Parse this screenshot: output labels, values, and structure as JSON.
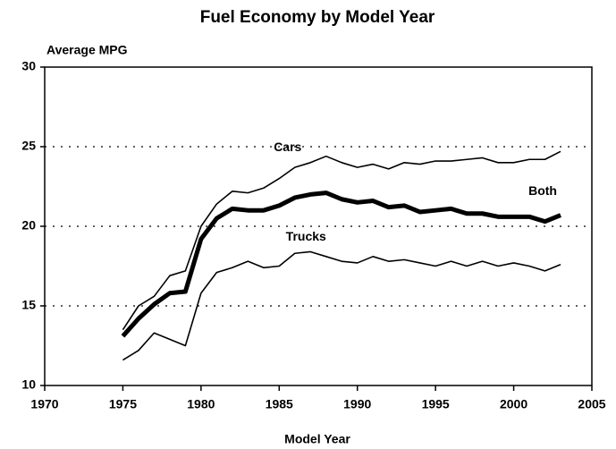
{
  "chart_data": {
    "type": "line",
    "title": "Fuel Economy by Model Year",
    "y_label": "Average MPG",
    "x_label": "Model Year",
    "x": [
      1975,
      1976,
      1977,
      1978,
      1979,
      1980,
      1981,
      1982,
      1983,
      1984,
      1985,
      1986,
      1987,
      1988,
      1989,
      1990,
      1991,
      1992,
      1993,
      1994,
      1995,
      1996,
      1997,
      1998,
      1999,
      2000,
      2001,
      2002,
      2003
    ],
    "series": [
      {
        "name": "Cars",
        "color": "#000000",
        "width": 1.6,
        "values": [
          13.5,
          15.0,
          15.6,
          16.9,
          17.2,
          20.0,
          21.4,
          22.2,
          22.1,
          22.4,
          23.0,
          23.7,
          24.0,
          24.4,
          24.0,
          23.7,
          23.9,
          23.6,
          24.0,
          23.9,
          24.1,
          24.1,
          24.2,
          24.3,
          24.0,
          24.0,
          24.2,
          24.2,
          24.7
        ]
      },
      {
        "name": "Both",
        "color": "#000000",
        "width": 5,
        "values": [
          13.1,
          14.2,
          15.1,
          15.8,
          15.9,
          19.2,
          20.5,
          21.1,
          21.0,
          21.0,
          21.3,
          21.8,
          22.0,
          22.1,
          21.7,
          21.5,
          21.6,
          21.2,
          21.3,
          20.9,
          21.0,
          21.1,
          20.8,
          20.8,
          20.6,
          20.6,
          20.6,
          20.3,
          20.7
        ]
      },
      {
        "name": "Trucks",
        "color": "#000000",
        "width": 1.6,
        "values": [
          11.6,
          12.2,
          13.3,
          12.9,
          12.5,
          15.8,
          17.1,
          17.4,
          17.8,
          17.4,
          17.5,
          18.3,
          18.4,
          18.1,
          17.8,
          17.7,
          18.1,
          17.8,
          17.9,
          17.7,
          17.5,
          17.8,
          17.5,
          17.8,
          17.5,
          17.7,
          17.5,
          17.2,
          17.6
        ]
      }
    ],
    "xlim": [
      1970,
      2005
    ],
    "xticks": [
      1970,
      1975,
      1980,
      1985,
      1990,
      1995,
      2000,
      2005
    ],
    "ylim": [
      10,
      30
    ],
    "yticks": [
      10,
      15,
      20,
      25,
      30
    ],
    "grid": true
  }
}
